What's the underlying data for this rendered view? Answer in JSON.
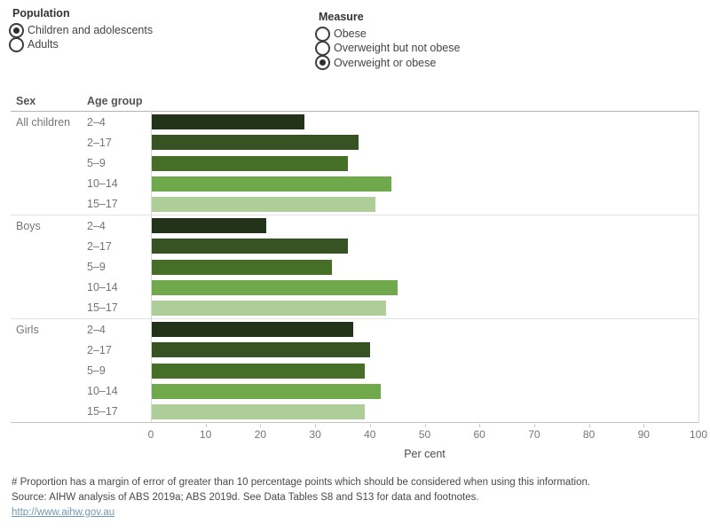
{
  "controls": {
    "population": {
      "title": "Population",
      "options": [
        {
          "label": "Children and adolescents",
          "selected": true
        },
        {
          "label": "Adults",
          "selected": false
        }
      ]
    },
    "measure": {
      "title": "Measure",
      "options": [
        {
          "label": "Obese",
          "selected": false
        },
        {
          "label": "Overweight but not obese",
          "selected": false
        },
        {
          "label": "Overweight or obese",
          "selected": true
        }
      ]
    }
  },
  "chart_data": {
    "type": "bar",
    "orientation": "horizontal",
    "col_header_sex": "Sex",
    "col_header_age": "Age group",
    "xlabel": "Per cent",
    "xlim": [
      0,
      100
    ],
    "x_ticks": [
      0,
      10,
      20,
      30,
      40,
      50,
      60,
      70,
      80,
      90,
      100
    ],
    "grid": false,
    "legend": false,
    "age_groups": [
      "2–4",
      "2–17",
      "5–9",
      "10–14",
      "15–17"
    ],
    "bar_colors": [
      "#22331a",
      "#375323",
      "#476e27",
      "#70a94b",
      "#adce97"
    ],
    "groups": [
      {
        "sex": "All children",
        "values": [
          28,
          38,
          36,
          44,
          41
        ]
      },
      {
        "sex": "Boys",
        "values": [
          21,
          36,
          33,
          45,
          43
        ]
      },
      {
        "sex": "Girls",
        "values": [
          37,
          40,
          39,
          42,
          39
        ]
      }
    ]
  },
  "footer": {
    "note": "# Proportion has a margin of error of greater than 10 percentage points which should be considered when using this information.",
    "source": "Source: AIHW analysis of ABS 2019a; ABS 2019d. See Data Tables S8 and S13 for data and footnotes.",
    "link": "http://www.aihw.gov.au"
  }
}
